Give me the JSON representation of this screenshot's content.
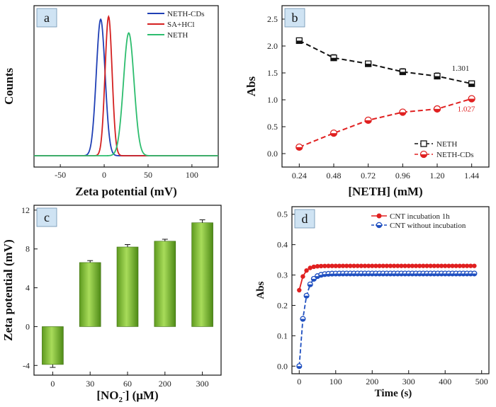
{
  "chart_data": [
    {
      "panel": "a",
      "type": "line",
      "xlabel": "Zeta potential (mV)",
      "ylabel": "Counts",
      "xlim": [
        -80,
        130
      ],
      "ylim": [
        0,
        1.1
      ],
      "xticks": [
        -50,
        0,
        50,
        100
      ],
      "yticks_visible": false,
      "legend_position": "top-right",
      "series": [
        {
          "name": "NETH-CDs",
          "color": "#1f3fb5",
          "center": -4,
          "sigma": 5,
          "height": 1.0
        },
        {
          "name": "SA+HCl",
          "color": "#d42020",
          "center": 5,
          "sigma": 4,
          "height": 1.02
        },
        {
          "name": "NETH",
          "color": "#2dbd6e",
          "center": 28,
          "sigma": 6,
          "height": 0.9
        }
      ]
    },
    {
      "panel": "b",
      "type": "line",
      "xlabel": "[NETH] (mM)",
      "ylabel": "Abs",
      "xlim": [
        0.12,
        1.56
      ],
      "ylim": [
        -0.25,
        2.75
      ],
      "xticks": [
        "0.24",
        "0.48",
        "0.72",
        "0.96",
        "1.20",
        "1.44"
      ],
      "yticks": [
        "0.0",
        "0.5",
        "1.0",
        "1.5",
        "2.0",
        "2.5"
      ],
      "legend_position": "bottom-right",
      "x": [
        0.24,
        0.48,
        0.72,
        0.96,
        1.2,
        1.44
      ],
      "series": [
        {
          "name": "NETH",
          "color": "#111111",
          "marker": "square",
          "values": [
            2.1,
            1.78,
            1.67,
            1.52,
            1.44,
            1.3
          ],
          "errors": [
            0.05,
            0.06,
            0.05,
            0.06,
            0.06,
            0.04
          ]
        },
        {
          "name": "NETH-CDs",
          "color": "#e02020",
          "marker": "half-circle",
          "values": [
            0.12,
            0.38,
            0.62,
            0.77,
            0.83,
            1.02
          ],
          "errors": [
            0.03,
            0.04,
            0.04,
            0.04,
            0.03,
            0.04
          ]
        }
      ],
      "annotations": [
        {
          "text": "1.301",
          "color": "#222222"
        },
        {
          "text": "1.027",
          "color": "#e02020"
        }
      ]
    },
    {
      "panel": "c",
      "type": "bar",
      "xlabel_main": "[NO",
      "xlabel_sub": "2",
      "xlabel_sup": "-",
      "xlabel_tail": "] (μM)",
      "ylabel": "Zeta potential (mV)",
      "ylim": [
        -5,
        12.5
      ],
      "yticks": [
        "-4",
        "0",
        "4",
        "8",
        "12"
      ],
      "categories": [
        "0",
        "30",
        "60",
        "200",
        "300"
      ],
      "values": [
        -3.9,
        6.6,
        8.2,
        8.8,
        10.7
      ],
      "errors": [
        0.3,
        0.2,
        0.25,
        0.2,
        0.3
      ],
      "color": "#86c23c"
    },
    {
      "panel": "d",
      "type": "line",
      "xlabel": "Time (s)",
      "ylabel": "Abs",
      "xlim": [
        -20,
        520
      ],
      "ylim": [
        -0.025,
        0.525
      ],
      "xticks": [
        "0",
        "100",
        "200",
        "300",
        "400",
        "500"
      ],
      "yticks": [
        "0.0",
        "0.1",
        "0.2",
        "0.3",
        "0.4",
        "0.5"
      ],
      "legend_position": "top-right",
      "series": [
        {
          "name": "CNT incubation 1h",
          "color": "#e02020",
          "marker": "circle",
          "start": 0.25,
          "plateau": 0.33,
          "tau": 12,
          "interval": 10,
          "end": 480
        },
        {
          "name": "CNT without incubation",
          "color": "#1f4fc0",
          "marker": "half-circle",
          "start": 0.0,
          "plateau": 0.305,
          "tau": 14,
          "interval": 10,
          "end": 480
        }
      ]
    }
  ],
  "panel_tags": {
    "a": "a",
    "b": "b",
    "c": "c",
    "d": "d"
  }
}
